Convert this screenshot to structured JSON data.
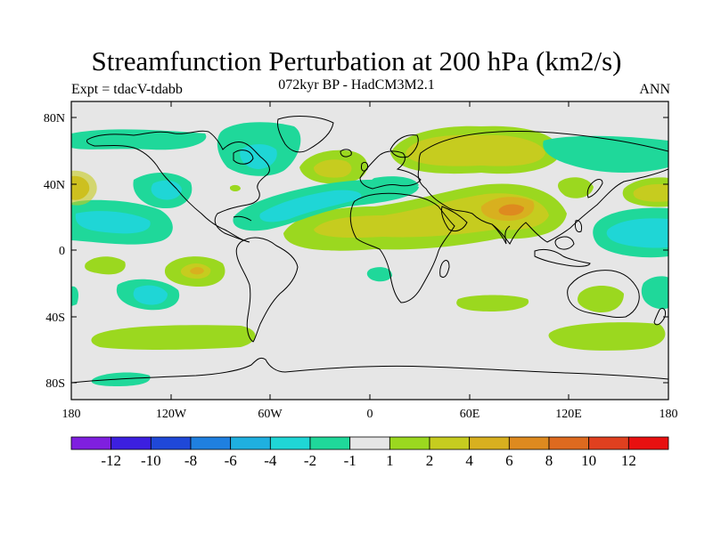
{
  "title": "Streamfunction Perturbation at 200 hPa (km2/s)",
  "subtitle": "072kyr BP - HadCM3M2.1",
  "left_label": "Expt = tdacV-tdabb",
  "right_label": "ANN",
  "lat_ticks": [
    "80N",
    "40N",
    "0",
    "40S",
    "80S"
  ],
  "lon_ticks": [
    "180",
    "120W",
    "60W",
    "0",
    "60E",
    "120E",
    "180"
  ],
  "colorbar": {
    "labels": [
      "-12",
      "-10",
      "-8",
      "-6",
      "-4",
      "-2",
      "-1",
      "1",
      "2",
      "4",
      "6",
      "8",
      "10",
      "12"
    ],
    "colors": [
      "#7f1fdf",
      "#3c1fe0",
      "#1f48d8",
      "#1f80e0",
      "#1fb0e0",
      "#1fd6d6",
      "#1fd89a",
      "#e6e6e6",
      "#9bd81f",
      "#c6cc1f",
      "#d8b01f",
      "#de8a1f",
      "#de6a1f",
      "#e0401f",
      "#e81010"
    ]
  },
  "chart_data": {
    "type": "heatmap",
    "title": "Streamfunction Perturbation at 200 hPa (km2/s)",
    "subtitle": "072kyr BP - HadCM3M2.1",
    "x_range": [
      -180,
      180
    ],
    "y_range": [
      -90,
      90
    ],
    "levels": [
      -12,
      -10,
      -8,
      -6,
      -4,
      -2,
      -1,
      1,
      2,
      4,
      6,
      8,
      10,
      12
    ],
    "features": [
      {
        "name": "eurasia-high",
        "lon": 70,
        "lat": 62,
        "value": 2.5
      },
      {
        "name": "asia-tropical-high",
        "lon": 85,
        "lat": 25,
        "value": 5
      },
      {
        "name": "africa-tropical-high",
        "lon": 20,
        "lat": 18,
        "value": 3.5
      },
      {
        "name": "north-atlantic-high",
        "lon": -20,
        "lat": 50,
        "value": 3
      },
      {
        "name": "canada-low",
        "lon": -70,
        "lat": 55,
        "value": -3
      },
      {
        "name": "tropical-atlantic-low",
        "lon": -35,
        "lat": 22,
        "value": -3
      },
      {
        "name": "north-pacific-low-east",
        "lon": 150,
        "lat": 12,
        "value": -3.5
      },
      {
        "name": "pacific-low-west",
        "lon": -160,
        "lat": 15,
        "value": -2
      },
      {
        "name": "south-pacific-low",
        "lon": -125,
        "lat": -30,
        "value": -2.5
      },
      {
        "name": "south-pacific-high",
        "lon": -105,
        "lat": -12,
        "value": 2.5
      },
      {
        "name": "south-atlantic-band-high",
        "lon": -90,
        "lat": -52,
        "value": 1.5
      },
      {
        "name": "south-indian-high",
        "lon": 70,
        "lat": -32,
        "value": 1.5
      },
      {
        "name": "southern-high-east",
        "lon": 155,
        "lat": -52,
        "value": 1.5
      },
      {
        "name": "antarctic-low",
        "lon": -155,
        "lat": -78,
        "value": -1.5
      }
    ]
  }
}
